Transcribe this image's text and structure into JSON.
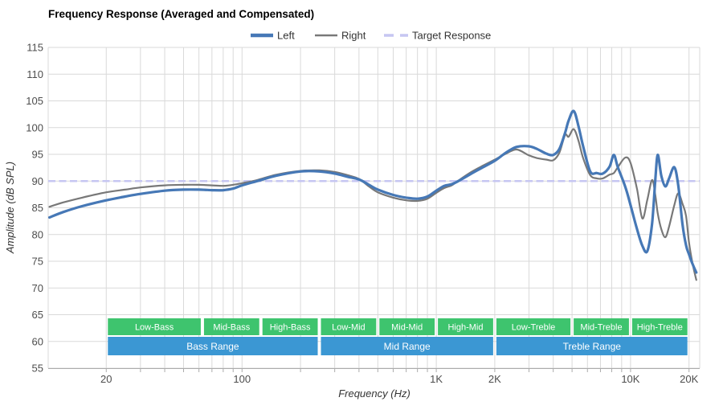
{
  "chart_data": {
    "type": "line",
    "title": "Frequency Response (Averaged and Compensated)",
    "xlabel": "Frequency (Hz)",
    "ylabel": "Amplitude (dB SPL)",
    "x_scale": "log",
    "x_range_hz": [
      10.05,
      22700
    ],
    "ylim": [
      55,
      115
    ],
    "y_tick_step": 5,
    "y_ticks": [
      55,
      60,
      65,
      70,
      75,
      80,
      85,
      90,
      95,
      100,
      105,
      110,
      115
    ],
    "x_gridlines_hz": [
      20,
      30,
      40,
      50,
      60,
      70,
      80,
      90,
      100,
      200,
      300,
      400,
      500,
      600,
      700,
      800,
      900,
      1000,
      2000,
      3000,
      4000,
      5000,
      6000,
      7000,
      8000,
      9000,
      10000,
      20000
    ],
    "x_tick_labels": [
      {
        "hz": 20,
        "label": "20"
      },
      {
        "hz": 100,
        "label": "100"
      },
      {
        "hz": 1000,
        "label": "1K"
      },
      {
        "hz": 2000,
        "label": "2K"
      },
      {
        "hz": 10000,
        "label": "10K"
      },
      {
        "hz": 20000,
        "label": "20K"
      }
    ],
    "grid": true,
    "legend_position": "top-center",
    "target_db": 90,
    "frequencies_hz": [
      10.2,
      12,
      15,
      20,
      25,
      30,
      40,
      50,
      60,
      70,
      80,
      90,
      100,
      120,
      150,
      200,
      250,
      300,
      350,
      400,
      450,
      500,
      600,
      700,
      800,
      900,
      1000,
      1100,
      1200,
      1300,
      1500,
      1700,
      2000,
      2300,
      2600,
      3000,
      3300,
      3700,
      4000,
      4300,
      4600,
      4800,
      5100,
      5400,
      5700,
      6200,
      6700,
      7200,
      7800,
      8200,
      8600,
      9400,
      10000,
      10800,
      11500,
      12200,
      12900,
      13400,
      13800,
      14400,
      15100,
      15800,
      16800,
      17600,
      18500,
      19300,
      20000,
      20800,
      21800
    ],
    "series": [
      {
        "name": "Left",
        "color": "#4678b6",
        "style": "solid",
        "line_width": 3.2,
        "values_db": [
          83.2,
          84.2,
          85.3,
          86.4,
          87.1,
          87.6,
          88.2,
          88.4,
          88.4,
          88.3,
          88.3,
          88.6,
          89.2,
          90.0,
          91.0,
          91.8,
          91.8,
          91.4,
          90.8,
          90.3,
          89.3,
          88.4,
          87.4,
          86.9,
          86.7,
          87.1,
          88.2,
          89.1,
          89.4,
          90.0,
          91.3,
          92.4,
          93.8,
          95.4,
          96.4,
          96.5,
          96.0,
          95.1,
          94.9,
          96.0,
          99.0,
          101.3,
          103.1,
          100.2,
          96.5,
          91.8,
          91.5,
          91.4,
          92.7,
          94.9,
          92.6,
          88.9,
          85.5,
          81.0,
          77.9,
          76.9,
          82.0,
          90.0,
          94.9,
          91.0,
          89.0,
          90.5,
          92.6,
          89.2,
          82.0,
          78.0,
          76.3,
          74.6,
          72.9
        ]
      },
      {
        "name": "Right",
        "color": "#787878",
        "style": "solid",
        "line_width": 2.2,
        "values_db": [
          85.2,
          86.0,
          86.9,
          87.9,
          88.4,
          88.8,
          89.2,
          89.3,
          89.3,
          89.2,
          89.1,
          89.3,
          89.6,
          90.2,
          91.2,
          91.9,
          92.0,
          91.7,
          91.1,
          90.4,
          89.0,
          87.9,
          86.9,
          86.4,
          86.3,
          86.7,
          87.8,
          88.7,
          89.2,
          90.1,
          91.6,
          92.7,
          94.0,
          95.2,
          95.9,
          94.8,
          94.3,
          94.0,
          93.9,
          95.3,
          98.6,
          98.3,
          99.7,
          97.5,
          94.3,
          91.1,
          90.5,
          90.5,
          91.2,
          91.5,
          92.6,
          94.4,
          93.4,
          88.5,
          83.0,
          86.5,
          90.2,
          87.5,
          84.0,
          81.0,
          79.5,
          81.5,
          85.5,
          87.7,
          85.8,
          83.5,
          78.5,
          74.8,
          71.5
        ]
      },
      {
        "name": "Target Response",
        "color": "#c6c6f2",
        "style": "dashed",
        "line_width": 2.6,
        "constant_db": 90
      }
    ],
    "bands": {
      "sub_bands": {
        "color": "#3ec46e",
        "text_color": "#ffffff",
        "items": [
          {
            "label": "Low-Bass",
            "from_hz": 20,
            "to_hz": 62.5
          },
          {
            "label": "Mid-Bass",
            "from_hz": 62.5,
            "to_hz": 125
          },
          {
            "label": "High-Bass",
            "from_hz": 125,
            "to_hz": 250
          },
          {
            "label": "Low-Mid",
            "from_hz": 250,
            "to_hz": 500
          },
          {
            "label": "Mid-Mid",
            "from_hz": 500,
            "to_hz": 1000
          },
          {
            "label": "High-Mid",
            "from_hz": 1000,
            "to_hz": 2000
          },
          {
            "label": "Low-Treble",
            "from_hz": 2000,
            "to_hz": 5000
          },
          {
            "label": "Mid-Treble",
            "from_hz": 5000,
            "to_hz": 10000
          },
          {
            "label": "High-Treble",
            "from_hz": 10000,
            "to_hz": 20000
          }
        ]
      },
      "ranges": {
        "color": "#3b97d3",
        "text_color": "#ffffff",
        "items": [
          {
            "label": "Bass Range",
            "from_hz": 20,
            "to_hz": 250
          },
          {
            "label": "Mid Range",
            "from_hz": 250,
            "to_hz": 2000
          },
          {
            "label": "Treble Range",
            "from_hz": 2000,
            "to_hz": 20000
          }
        ]
      }
    },
    "colors": {
      "grid": "#d9d9d9",
      "axis": "#ababab",
      "tick_text": "#4d4d4d",
      "background": "#ffffff"
    }
  }
}
